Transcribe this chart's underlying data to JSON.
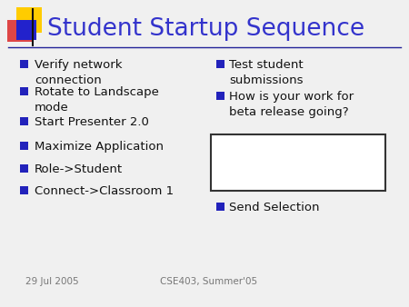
{
  "title": "Student Startup Sequence",
  "title_color": "#3333cc",
  "title_fontsize": 19,
  "bg_color": "#f0f0f0",
  "left_bullets": [
    "Verify network\nconnection",
    "Rotate to Landscape\nmode",
    "Start Presenter 2.0",
    "Maximize Application",
    "Role->Student",
    "Connect->Classroom 1"
  ],
  "right_bullet1": "Test student\nsubmissions",
  "right_bullet2": "How is your work for\nbeta release going?",
  "right_bottom_bullet": "Send Selection",
  "bullet_square_color": "#2222bb",
  "text_color": "#111111",
  "text_fontsize": 9.5,
  "footer_left": "29 Jul 2005",
  "footer_right": "CSE403, Summer'05",
  "footer_fontsize": 7.5,
  "footer_color": "#777777",
  "logo_yellow": "#ffcc00",
  "logo_red": "#dd3333",
  "logo_blue": "#2222cc",
  "line_color": "#222299"
}
